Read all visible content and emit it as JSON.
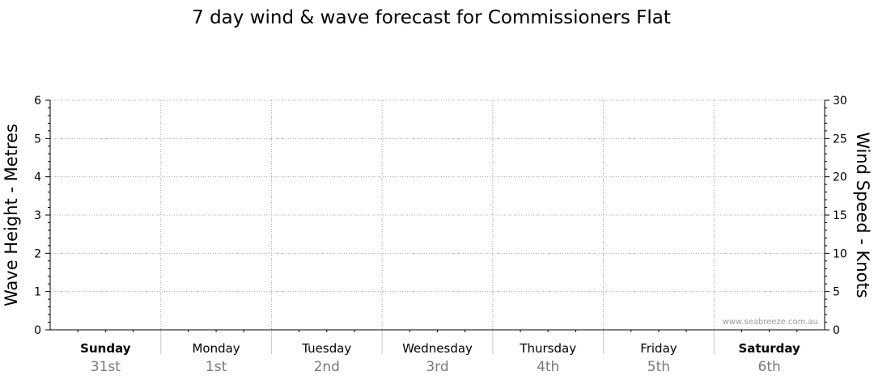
{
  "chart_data": {
    "type": "line",
    "title": "7 day wind & wave forecast for Commissioners Flat",
    "ylabel_left": "Wave Height - Metres",
    "ylabel_right": "Wind Speed - Knots",
    "ylim_left": [
      0,
      6
    ],
    "ylim_right": [
      0,
      30
    ],
    "yticks_left": [
      "0",
      "1",
      "2",
      "3",
      "4",
      "5",
      "6"
    ],
    "yticks_right": [
      "0",
      "5",
      "10",
      "15",
      "20",
      "25",
      "30"
    ],
    "grid": true,
    "days": [
      {
        "name": "Sunday",
        "date": "31st",
        "bold": true
      },
      {
        "name": "Monday",
        "date": "1st",
        "bold": false
      },
      {
        "name": "Tuesday",
        "date": "2nd",
        "bold": false
      },
      {
        "name": "Wednesday",
        "date": "3rd",
        "bold": false
      },
      {
        "name": "Thursday",
        "date": "4th",
        "bold": false
      },
      {
        "name": "Friday",
        "date": "5th",
        "bold": false
      },
      {
        "name": "Saturday",
        "date": "6th",
        "bold": true
      }
    ],
    "series": []
  },
  "watermark": "www.seabreeze.com.au"
}
